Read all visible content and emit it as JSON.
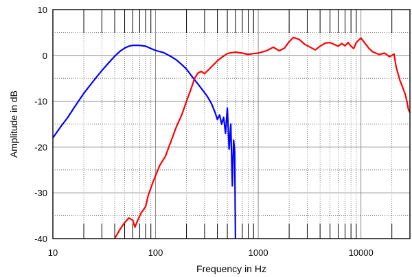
{
  "chart_data": {
    "type": "line",
    "title": "",
    "xlabel": "Frequency in Hz",
    "ylabel": "Amplitude in dB",
    "x_scale": "log",
    "xlim": [
      10,
      30000
    ],
    "ylim": [
      -40,
      10
    ],
    "x_ticks": [
      10,
      100,
      1000,
      10000
    ],
    "x_tick_labels": [
      "10",
      "100",
      "1000",
      "10000"
    ],
    "y_ticks": [
      10,
      0,
      -10,
      -20,
      -30,
      -40
    ],
    "y_tick_labels": [
      "10",
      "0",
      "-10",
      "-20",
      "-30",
      "-40"
    ],
    "grid": true,
    "legend": "none",
    "series": [
      {
        "color": "#0000ff",
        "points": [
          [
            10,
            -18
          ],
          [
            12,
            -15.5
          ],
          [
            14,
            -13.5
          ],
          [
            16,
            -11.5
          ],
          [
            18,
            -9.8
          ],
          [
            20,
            -8.3
          ],
          [
            25,
            -5.5
          ],
          [
            30,
            -3.3
          ],
          [
            35,
            -1.6
          ],
          [
            40,
            -0.2
          ],
          [
            45,
            0.9
          ],
          [
            50,
            1.6
          ],
          [
            55,
            2.0
          ],
          [
            60,
            2.2
          ],
          [
            70,
            2.2
          ],
          [
            80,
            2.0
          ],
          [
            90,
            1.5
          ],
          [
            100,
            1.1
          ],
          [
            120,
            0.6
          ],
          [
            140,
            -0.2
          ],
          [
            160,
            -1.0
          ],
          [
            180,
            -2.0
          ],
          [
            200,
            -3.0
          ],
          [
            230,
            -4.8
          ],
          [
            260,
            -6.3
          ],
          [
            290,
            -7.7
          ],
          [
            320,
            -9.0
          ],
          [
            350,
            -10.5
          ],
          [
            380,
            -12.5
          ],
          [
            400,
            -14.0
          ],
          [
            420,
            -13.0
          ],
          [
            440,
            -15.0
          ],
          [
            460,
            -13.5
          ],
          [
            480,
            -17.0
          ],
          [
            500,
            -11.5
          ],
          [
            520,
            -20.5
          ],
          [
            540,
            -15.0
          ],
          [
            560,
            -28.5
          ],
          [
            575,
            -18.5
          ],
          [
            590,
            -21.0
          ],
          [
            600,
            -40
          ]
        ]
      },
      {
        "color": "#ff0000",
        "points": [
          [
            40,
            -40
          ],
          [
            45,
            -38
          ],
          [
            50,
            -36.5
          ],
          [
            55,
            -35.5
          ],
          [
            60,
            -36.0
          ],
          [
            63,
            -37.5
          ],
          [
            67,
            -36.0
          ],
          [
            72,
            -34.5
          ],
          [
            80,
            -33.0
          ],
          [
            85,
            -30.5
          ],
          [
            95,
            -27.5
          ],
          [
            110,
            -24.0
          ],
          [
            125,
            -22.0
          ],
          [
            140,
            -19.0
          ],
          [
            160,
            -15.5
          ],
          [
            180,
            -13.0
          ],
          [
            200,
            -10.0
          ],
          [
            220,
            -7.5
          ],
          [
            240,
            -5.0
          ],
          [
            260,
            -3.8
          ],
          [
            280,
            -3.5
          ],
          [
            300,
            -4.0
          ],
          [
            350,
            -2.5
          ],
          [
            400,
            -1.2
          ],
          [
            450,
            -0.3
          ],
          [
            500,
            0.4
          ],
          [
            550,
            0.6
          ],
          [
            600,
            0.7
          ],
          [
            700,
            0.5
          ],
          [
            800,
            0.2
          ],
          [
            900,
            0.4
          ],
          [
            1000,
            0.5
          ],
          [
            1200,
            1.0
          ],
          [
            1400,
            1.8
          ],
          [
            1600,
            1.0
          ],
          [
            1800,
            1.6
          ],
          [
            2000,
            3.0
          ],
          [
            2200,
            3.9
          ],
          [
            2500,
            3.5
          ],
          [
            2800,
            2.5
          ],
          [
            3200,
            1.8
          ],
          [
            3600,
            1.2
          ],
          [
            4000,
            2.0
          ],
          [
            4500,
            2.7
          ],
          [
            5000,
            2.8
          ],
          [
            5500,
            2.4
          ],
          [
            6000,
            2.0
          ],
          [
            6500,
            2.6
          ],
          [
            7000,
            2.1
          ],
          [
            7500,
            2.8
          ],
          [
            8000,
            2.0
          ],
          [
            8500,
            1.5
          ],
          [
            9000,
            2.8
          ],
          [
            10000,
            3.8
          ],
          [
            11000,
            2.6
          ],
          [
            12000,
            1.5
          ],
          [
            13000,
            0.8
          ],
          [
            14000,
            0.5
          ],
          [
            15000,
            0.2
          ],
          [
            17000,
            0.5
          ],
          [
            19000,
            -0.3
          ],
          [
            21000,
            0.3
          ],
          [
            22000,
            -2.5
          ],
          [
            24000,
            -5.5
          ],
          [
            25000,
            -6.5
          ],
          [
            26000,
            -7.5
          ],
          [
            27000,
            -8.5
          ],
          [
            28000,
            -10.0
          ],
          [
            29000,
            -11.8
          ],
          [
            30000,
            -12.5
          ]
        ]
      }
    ]
  }
}
